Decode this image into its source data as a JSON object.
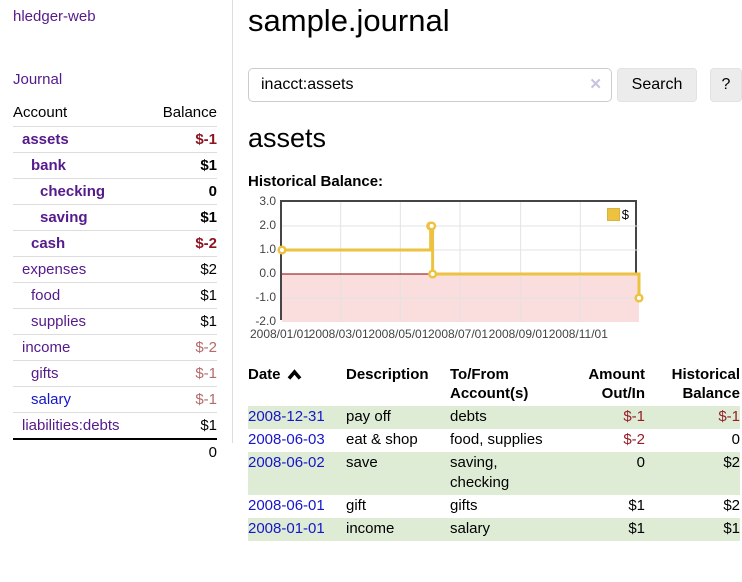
{
  "palette": {
    "purple": "#551a8b",
    "blue": "#1616c9",
    "neg": "#961e28",
    "neg-bold": "#8b141e",
    "neg-muted": "#b66a6a",
    "row-green": "#deecd6",
    "gold": "#edc240",
    "pink": "#fadddd",
    "zero-line": "#8b0000",
    "grid": "#e3e3e3",
    "chart-border": "#454545",
    "button-bg": "#ececec",
    "input-border": "#cccccc",
    "divider": "#dddddd",
    "clear-x": "#c9c2de",
    "tick-text": "#444444"
  },
  "app": {
    "title": "hledger-web"
  },
  "sidebar": {
    "journal_link": "Journal",
    "accounts": {
      "headers": [
        "Account",
        "Balance"
      ],
      "rows": [
        {
          "account": "assets",
          "balance": "$-1"
        },
        {
          "account": "bank",
          "balance": "$1"
        },
        {
          "account": "checking",
          "balance": "0"
        },
        {
          "account": "saving",
          "balance": "$1"
        },
        {
          "account": "cash",
          "balance": "$-2"
        },
        {
          "account": "expenses",
          "balance": "$2"
        },
        {
          "account": "food",
          "balance": "$1"
        },
        {
          "account": "supplies",
          "balance": "$1"
        },
        {
          "account": "income",
          "balance": "$-2"
        },
        {
          "account": "gifts",
          "balance": "$-1"
        },
        {
          "account": "salary",
          "balance": "$-1"
        },
        {
          "account": "liabilities:debts",
          "balance": "$1"
        }
      ],
      "total": "0"
    }
  },
  "main": {
    "title": "sample.journal",
    "search": {
      "value": "inacct:assets",
      "clear_icon": "✕",
      "button_label": "Search",
      "help_label": "?"
    },
    "account_heading": "assets",
    "chart_label": "Historical Balance:"
  },
  "chart_data": {
    "type": "line",
    "title": "Historical Balance",
    "step": true,
    "x_range": [
      "2008-01-01",
      "2008-12-31"
    ],
    "ylim": [
      -2,
      3
    ],
    "y_ticks": [
      {
        "label": "3.0",
        "v": 3
      },
      {
        "label": "2.0",
        "v": 2
      },
      {
        "label": "1.0",
        "v": 1
      },
      {
        "label": "0.0",
        "v": 0
      },
      {
        "label": "-1.0",
        "v": -1
      },
      {
        "label": "-2.0",
        "v": -2
      }
    ],
    "x_ticks": [
      {
        "label": "2008/01/01",
        "date": "2008-01-01"
      },
      {
        "label": "2008/03/01",
        "date": "2008-03-01"
      },
      {
        "label": "2008/05/01",
        "date": "2008-05-01"
      },
      {
        "label": "2008/07/01",
        "date": "2008-07-01"
      },
      {
        "label": "2008/09/01",
        "date": "2008-09-01"
      },
      {
        "label": "2008/11/01",
        "date": "2008-11-01"
      }
    ],
    "series": [
      {
        "name": "$",
        "color": "#edc240",
        "points": [
          [
            "2008-01-01",
            1
          ],
          [
            "2008-06-01",
            2
          ],
          [
            "2008-06-02",
            2
          ],
          [
            "2008-06-03",
            0
          ],
          [
            "2008-12-31",
            -1
          ]
        ]
      }
    ],
    "legend": {
      "label": "$",
      "position": "top-right"
    },
    "grid": true,
    "negative_region_color": "#fadddd",
    "zero_line_color": "#8b0000"
  },
  "register": {
    "headers": [
      "Date",
      "Description",
      "To/From Account(s)",
      "Amount Out/In",
      "Historical Balance"
    ],
    "rows": [
      {
        "date": "2008-12-31",
        "description": "pay off",
        "accounts": "debts",
        "amount": "$-1",
        "balance": "$-1"
      },
      {
        "date": "2008-06-03",
        "description": "eat & shop",
        "accounts": "food, supplies",
        "amount": "$-2",
        "balance": "0"
      },
      {
        "date": "2008-06-02",
        "description": "save",
        "accounts": "saving, checking",
        "amount": "0",
        "balance": "$2"
      },
      {
        "date": "2008-06-01",
        "description": "gift",
        "accounts": "gifts",
        "amount": "$1",
        "balance": "$2"
      },
      {
        "date": "2008-01-01",
        "description": "income",
        "accounts": "salary",
        "amount": "$1",
        "balance": "$1"
      }
    ]
  }
}
